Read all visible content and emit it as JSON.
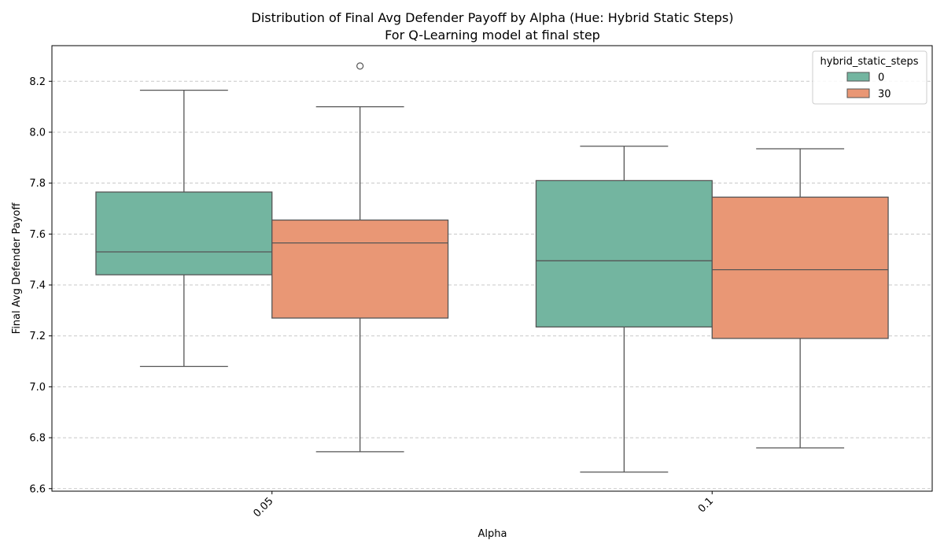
{
  "chart_data": {
    "type": "box",
    "title": "Distribution of Final Avg Defender Payoff by Alpha (Hue: Hybrid Static Steps)",
    "subtitle": "For Q-Learning model at final step",
    "xlabel": "Alpha",
    "ylabel": "Final Avg Defender Payoff",
    "categories": [
      "0.05",
      "0.1"
    ],
    "ylim": [
      6.59,
      8.34
    ],
    "yticks": [
      6.6,
      6.8,
      7.0,
      7.2,
      7.4,
      7.6,
      7.8,
      8.0,
      8.2
    ],
    "ytick_labels": [
      "6.6",
      "6.8",
      "7.0",
      "7.2",
      "7.4",
      "7.6",
      "7.8",
      "8.0",
      "8.2"
    ],
    "grid": "y, dashed",
    "legend": {
      "title": "hybrid_static_steps",
      "placement": "top-right"
    },
    "series": [
      {
        "name": "0",
        "color": "#73b5a0",
        "boxes": [
          {
            "category": "0.05",
            "whisker_low": 7.08,
            "q1": 7.44,
            "median": 7.53,
            "q3": 7.765,
            "whisker_high": 8.165,
            "outliers": []
          },
          {
            "category": "0.1",
            "whisker_low": 6.665,
            "q1": 7.235,
            "median": 7.495,
            "q3": 7.81,
            "whisker_high": 7.945,
            "outliers": []
          }
        ]
      },
      {
        "name": "30",
        "color": "#e99775",
        "boxes": [
          {
            "category": "0.05",
            "whisker_low": 6.745,
            "q1": 7.27,
            "median": 7.565,
            "q3": 7.655,
            "whisker_high": 8.1,
            "outliers": [
              8.26
            ]
          },
          {
            "category": "0.1",
            "whisker_low": 6.76,
            "q1": 7.19,
            "median": 7.46,
            "q3": 7.745,
            "whisker_high": 7.935,
            "outliers": []
          }
        ]
      }
    ]
  }
}
